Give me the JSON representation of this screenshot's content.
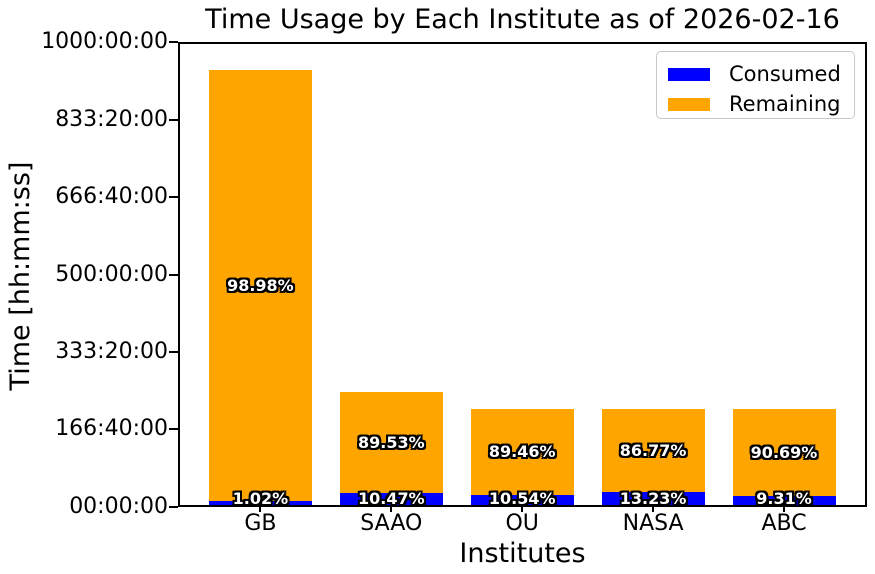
{
  "title": "Time Usage by Each Institute as of 2026-02-16",
  "xlabel": "Institutes",
  "ylabel": "Time [hh:mm:ss]",
  "legend": {
    "consumed_label": "Consumed",
    "remaining_label": "Remaining"
  },
  "colors": {
    "consumed": "#0000ff",
    "remaining": "#ffa500",
    "axis": "#000000",
    "background": "#ffffff",
    "label_text": "#ffffff",
    "label_outline": "#000000"
  },
  "chart_data": {
    "type": "bar",
    "stacked": true,
    "title": "Time Usage by Each Institute as of 2026-02-16",
    "xlabel": "Institutes",
    "ylabel": "Time [hh:mm:ss]",
    "legend_position": "upper right",
    "grid": false,
    "categories": [
      "GB",
      "SAAO",
      "OU",
      "NASA",
      "ABC"
    ],
    "unit": "hours",
    "ylim": [
      0,
      1000
    ],
    "y_ticks": [
      {
        "value": 0,
        "label": "00:00:00"
      },
      {
        "value": 166.6667,
        "label": "166:40:00"
      },
      {
        "value": 333.3333,
        "label": "333:20:00"
      },
      {
        "value": 500,
        "label": "500:00:00"
      },
      {
        "value": 666.6667,
        "label": "666:40:00"
      },
      {
        "value": 833.3333,
        "label": "833:20:00"
      },
      {
        "value": 1000,
        "label": "1000:00:00"
      }
    ],
    "series": [
      {
        "name": "Consumed",
        "color_key": "consumed",
        "values": [
          9.5,
          25.4,
          21.8,
          27.3,
          19.2
        ],
        "labels": [
          "1.02%",
          "10.47%",
          "10.54%",
          "13.23%",
          "9.31%"
        ]
      },
      {
        "name": "Remaining",
        "color_key": "remaining",
        "values": [
          925.3,
          217.0,
          184.7,
          179.2,
          187.3
        ],
        "labels": [
          "98.98%",
          "89.53%",
          "89.46%",
          "86.77%",
          "90.69%"
        ]
      }
    ],
    "totals_hours_est": [
      934.8,
      242.4,
      206.5,
      206.5,
      206.5
    ]
  }
}
